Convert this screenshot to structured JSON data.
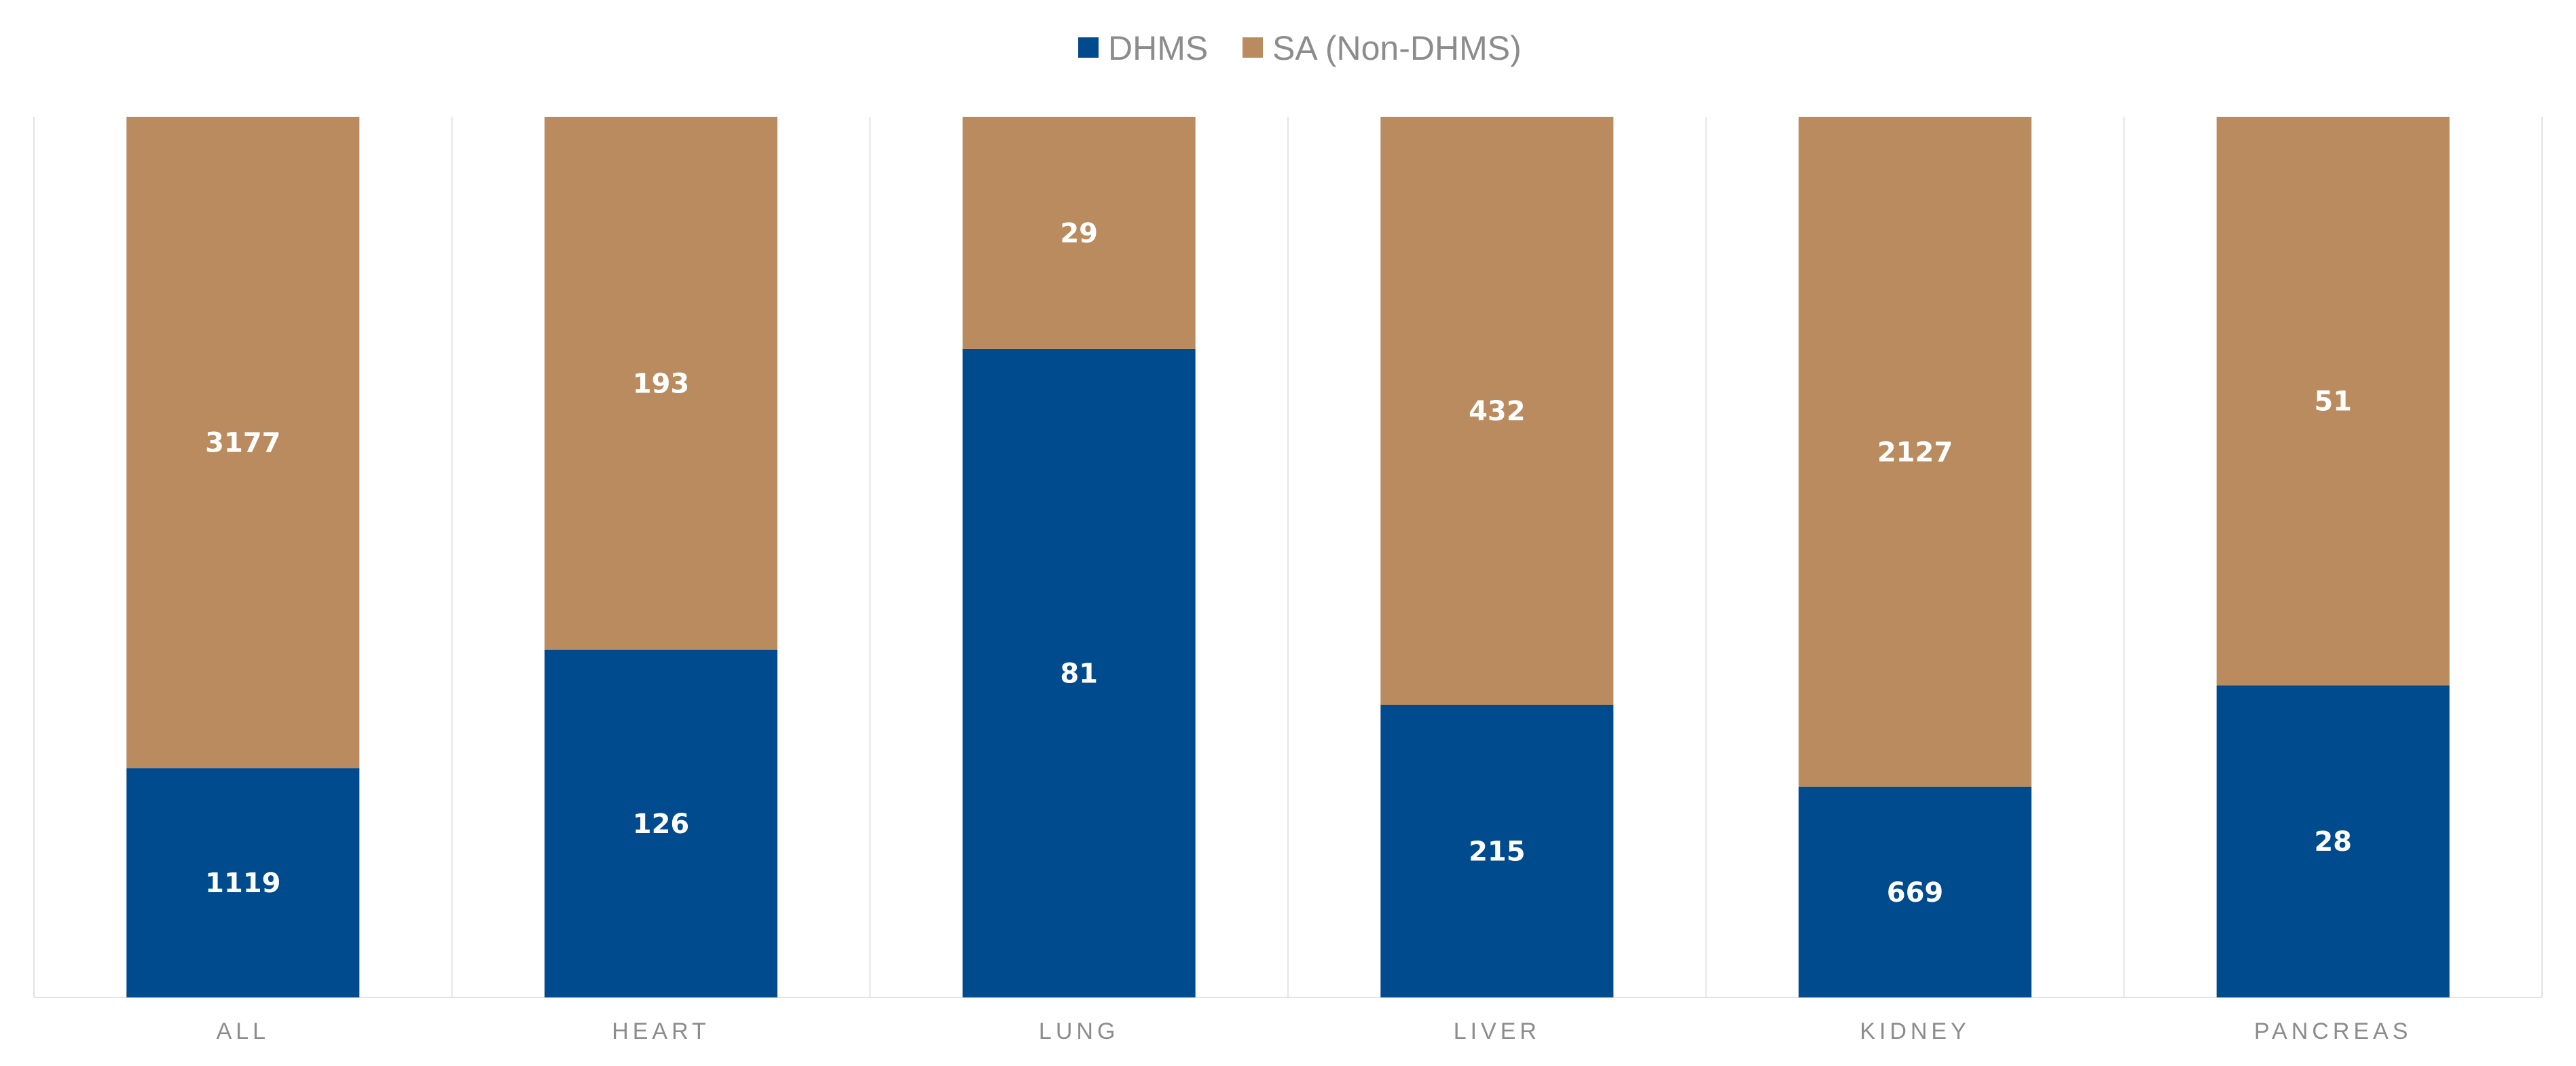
{
  "legend": {
    "items": [
      {
        "name": "DHMS",
        "color": "#004B8D"
      },
      {
        "name": "SA (Non-DHMS)",
        "color": "#BA8B5F"
      }
    ]
  },
  "chart_data": {
    "type": "bar",
    "stacking": "percent",
    "categories": [
      "ALL",
      "HEART",
      "LUNG",
      "LIVER",
      "KIDNEY",
      "PANCREAS"
    ],
    "series": [
      {
        "name": "DHMS",
        "values": [
          1119,
          126,
          81,
          215,
          669,
          28
        ],
        "color": "#004B8D"
      },
      {
        "name": "SA (Non-DHMS)",
        "values": [
          3177,
          193,
          29,
          432,
          2127,
          51
        ],
        "color": "#BA8B5F"
      }
    ],
    "title": "",
    "xlabel": "",
    "ylabel": "",
    "ylim": [
      0,
      100
    ],
    "grid": true,
    "legend_position": "top-center"
  }
}
